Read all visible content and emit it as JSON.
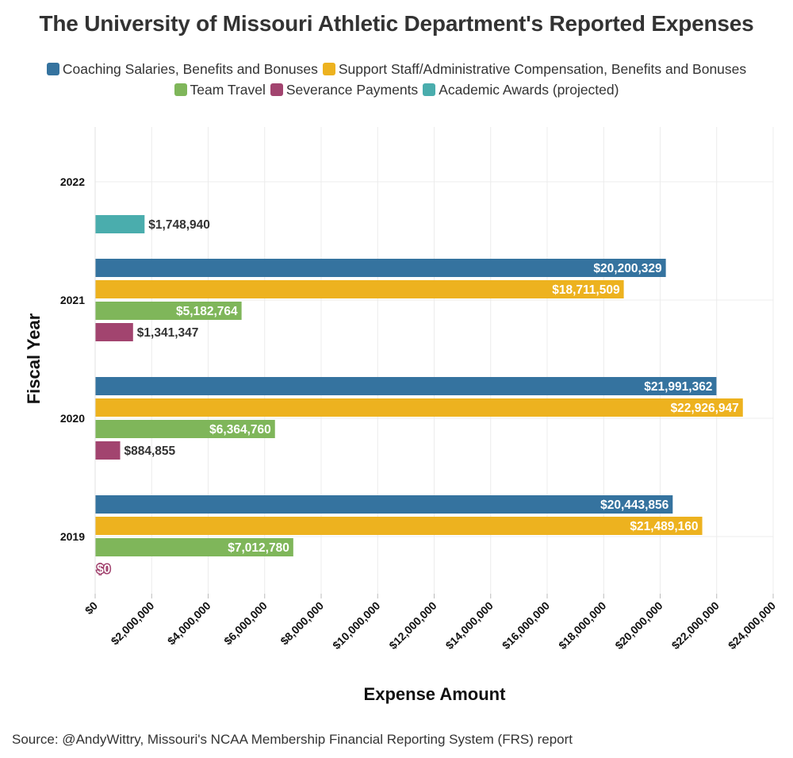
{
  "chart_data": {
    "type": "bar",
    "orientation": "horizontal",
    "title": "The University of Missouri Athletic Department's Reported Expenses",
    "xlabel": "Expense Amount",
    "ylabel": "Fiscal Year",
    "xlim": [
      0,
      24000000
    ],
    "x_ticks": [
      0,
      2000000,
      4000000,
      6000000,
      8000000,
      10000000,
      12000000,
      14000000,
      16000000,
      18000000,
      20000000,
      22000000,
      24000000
    ],
    "x_tick_labels": [
      "$0",
      "$2,000,000",
      "$4,000,000",
      "$6,000,000",
      "$8,000,000",
      "$10,000,000",
      "$12,000,000",
      "$14,000,000",
      "$16,000,000",
      "$18,000,000",
      "$20,000,000",
      "$22,000,000",
      "$24,000,000"
    ],
    "categories": [
      "2022",
      "2021",
      "2020",
      "2019"
    ],
    "grid": true,
    "legend_position": "top",
    "series": [
      {
        "name": "Coaching Salaries, Benefits and Bonuses",
        "color": "#35739f",
        "values": [
          null,
          20200329,
          21991362,
          20443856
        ],
        "labels": [
          null,
          "$20,200,329",
          "$21,991,362",
          "$20,443,856"
        ]
      },
      {
        "name": "Support Staff/Administrative Compensation, Benefits and Bonuses",
        "color": "#edb21f",
        "values": [
          null,
          18711509,
          22926947,
          21489160
        ],
        "labels": [
          null,
          "$18,711,509",
          "$22,926,947",
          "$21,489,160"
        ]
      },
      {
        "name": "Team Travel",
        "color": "#7fb65a",
        "values": [
          null,
          5182764,
          6364760,
          7012780
        ],
        "labels": [
          null,
          "$5,182,764",
          "$6,364,760",
          "$7,012,780"
        ]
      },
      {
        "name": "Severance Payments",
        "color": "#a2446f",
        "values": [
          null,
          1341347,
          884855,
          0
        ],
        "labels": [
          null,
          "$1,341,347",
          "$884,855",
          "$0"
        ]
      },
      {
        "name": "Academic Awards (projected)",
        "color": "#4aadad",
        "values": [
          1748940,
          null,
          null,
          null
        ],
        "labels": [
          "$1,748,940",
          null,
          null,
          null
        ]
      }
    ]
  },
  "source": "Source: @AndyWittry, Missouri's NCAA Membership Financial Reporting System (FRS) report"
}
